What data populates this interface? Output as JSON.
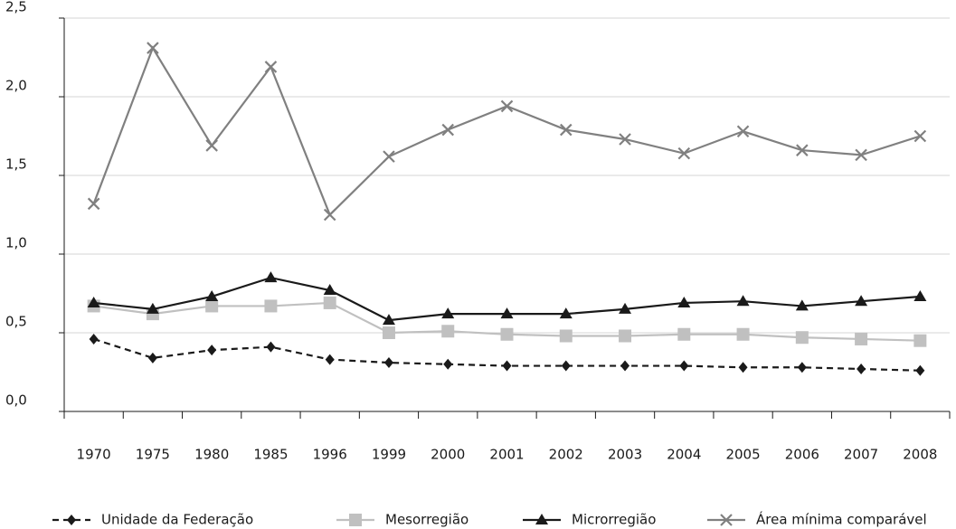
{
  "chart_data": {
    "type": "line",
    "categories": [
      "1970",
      "1975",
      "1980",
      "1985",
      "1996",
      "1999",
      "2000",
      "2001",
      "2002",
      "2003",
      "2004",
      "2005",
      "2006",
      "2007",
      "2008"
    ],
    "series": [
      {
        "name": "Unidade da Federação",
        "color": "#1a1a1a",
        "dash": true,
        "marker": "diamond",
        "values": [
          0.46,
          0.34,
          0.39,
          0.41,
          0.33,
          0.31,
          0.3,
          0.29,
          0.29,
          0.29,
          0.29,
          0.28,
          0.28,
          0.27,
          0.26
        ]
      },
      {
        "name": "Mesorregião",
        "color": "#c0c0c0",
        "dash": false,
        "marker": "square",
        "values": [
          0.67,
          0.62,
          0.67,
          0.67,
          0.69,
          0.5,
          0.51,
          0.49,
          0.48,
          0.48,
          0.49,
          0.49,
          0.47,
          0.46,
          0.45
        ]
      },
      {
        "name": "Microrregião",
        "color": "#1a1a1a",
        "dash": false,
        "marker": "triangle",
        "values": [
          0.69,
          0.65,
          0.73,
          0.85,
          0.77,
          0.58,
          0.62,
          0.62,
          0.62,
          0.65,
          0.69,
          0.7,
          0.67,
          0.7,
          0.73
        ]
      },
      {
        "name": "Área mínima comparável",
        "color": "#808080",
        "dash": false,
        "marker": "x",
        "values": [
          1.32,
          2.31,
          1.69,
          2.19,
          1.25,
          1.62,
          1.79,
          1.94,
          1.79,
          1.73,
          1.64,
          1.78,
          1.66,
          1.63,
          1.75
        ]
      }
    ],
    "ylim": [
      0,
      2.5
    ],
    "yticks": [
      {
        "value": 0,
        "label": "0,0"
      },
      {
        "value": 0.5,
        "label": "0,5"
      },
      {
        "value": 1,
        "label": "1,0"
      },
      {
        "value": 1.5,
        "label": "1,5"
      },
      {
        "value": 2,
        "label": "2,0"
      },
      {
        "value": 2.5,
        "label": "2,5"
      }
    ],
    "grid": true
  }
}
